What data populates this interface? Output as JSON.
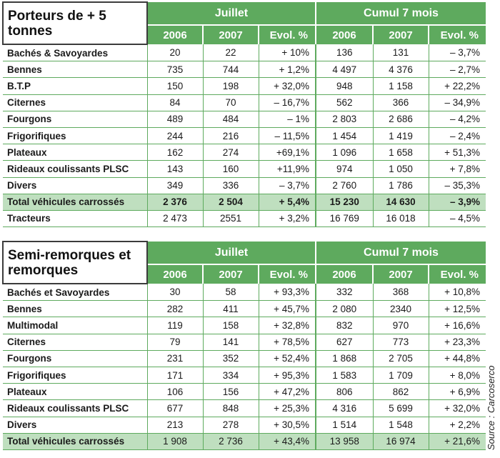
{
  "tables": [
    {
      "title": "Porteurs de + 5 tonnes",
      "group1": "Juillet",
      "group2": "Cumul 7 mois",
      "headers": [
        "2006",
        "2007",
        "Evol. %",
        "2006",
        "2007",
        "Evol. %"
      ],
      "rows": [
        {
          "label": "Bachés & Savoyardes",
          "v": [
            "20",
            "22",
            "+ 10%",
            "136",
            "131",
            "– 3,7%"
          ]
        },
        {
          "label": "Bennes",
          "v": [
            "735",
            "744",
            "+ 1,2%",
            "4 497",
            "4 376",
            "– 2,7%"
          ]
        },
        {
          "label": "B.T.P",
          "v": [
            "150",
            "198",
            "+ 32,0%",
            "948",
            "1 158",
            "+ 22,2%"
          ]
        },
        {
          "label": "Citernes",
          "v": [
            "84",
            "70",
            "– 16,7%",
            "562",
            "366",
            "– 34,9%"
          ]
        },
        {
          "label": "Fourgons",
          "v": [
            "489",
            "484",
            "– 1%",
            "2 803",
            "2 686",
            "– 4,2%"
          ]
        },
        {
          "label": "Frigorifiques",
          "v": [
            "244",
            "216",
            "– 11,5%",
            "1 454",
            "1 419",
            "– 2,4%"
          ]
        },
        {
          "label": "Plateaux",
          "v": [
            "162",
            "274",
            "+69,1%",
            "1 096",
            "1 658",
            "+ 51,3%"
          ]
        },
        {
          "label": "Rideaux coulissants PLSC",
          "v": [
            "143",
            "160",
            "+11,9%",
            "974",
            "1 050",
            "+ 7,8%"
          ]
        },
        {
          "label": "Divers",
          "v": [
            "349",
            "336",
            "– 3,7%",
            "2 760",
            "1 786",
            "– 35,3%"
          ]
        },
        {
          "label": "Total véhicules carrossés",
          "v": [
            "2 376",
            "2 504",
            "+ 5,4%",
            "15 230",
            "14 630",
            "– 3,9%"
          ],
          "total": true
        },
        {
          "label": "Tracteurs",
          "v": [
            "2 473",
            "2551",
            "+ 3,2%",
            "16 769",
            "16 018",
            "– 4,5%"
          ]
        }
      ]
    },
    {
      "title": "Semi-remorques et remorques",
      "group1": "Juillet",
      "group2": "Cumul 7 mois",
      "headers": [
        "2006",
        "2007",
        "Evol. %",
        "2006",
        "2007",
        "Evol. %"
      ],
      "rows": [
        {
          "label": "Bachés et Savoyardes",
          "v": [
            "30",
            "58",
            "+ 93,3%",
            "332",
            "368",
            "+ 10,8%"
          ]
        },
        {
          "label": "Bennes",
          "v": [
            "282",
            "411",
            "+ 45,7%",
            "2 080",
            "2340",
            "+ 12,5%"
          ]
        },
        {
          "label": "Multimodal",
          "v": [
            "119",
            "158",
            "+ 32,8%",
            "832",
            "970",
            "+ 16,6%"
          ]
        },
        {
          "label": "Citernes",
          "v": [
            "79",
            "141",
            "+ 78,5%",
            "627",
            "773",
            "+ 23,3%"
          ]
        },
        {
          "label": "Fourgons",
          "v": [
            "231",
            "352",
            "+ 52,4%",
            "1 868",
            "2 705",
            "+ 44,8%"
          ]
        },
        {
          "label": "Frigorifiques",
          "v": [
            "171",
            "334",
            "+ 95,3%",
            "1 583",
            "1 709",
            "+ 8,0%"
          ]
        },
        {
          "label": "Plateaux",
          "v": [
            "106",
            "156",
            "+ 47,2%",
            "806",
            "862",
            "+ 6,9%"
          ]
        },
        {
          "label": "Rideaux coulissants PLSC",
          "v": [
            "677",
            "848",
            "+ 25,3%",
            "4 316",
            "5 699",
            "+ 32,0%"
          ]
        },
        {
          "label": "Divers",
          "v": [
            "213",
            "278",
            "+ 30,5%",
            "1 514",
            "1 548",
            "+ 2,2%"
          ]
        },
        {
          "label": "Total véhicules carrossés",
          "v": [
            "1 908",
            "2 736",
            "+ 43,4%",
            "13 958",
            "16 974",
            "+ 21,6%"
          ],
          "total": true,
          "plain": true
        }
      ]
    }
  ],
  "source": "Source : Carcoserco"
}
